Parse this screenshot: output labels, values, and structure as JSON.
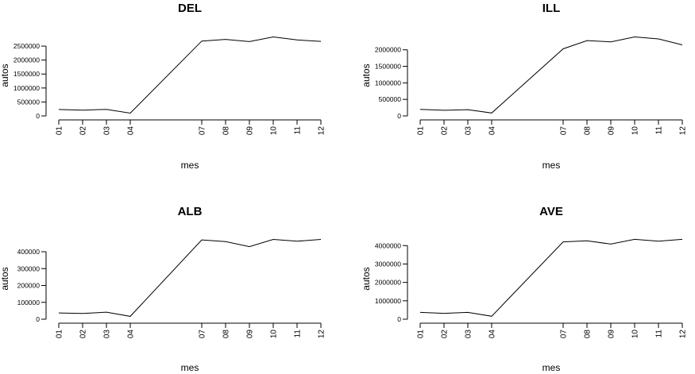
{
  "chart_data": [
    {
      "type": "line",
      "title": "DEL",
      "xlabel": "mes",
      "ylabel": "autos",
      "categories": [
        "01",
        "02",
        "03",
        "04",
        "07",
        "08",
        "09",
        "10",
        "11",
        "12"
      ],
      "x": [
        1,
        2,
        3,
        4,
        7,
        8,
        9,
        10,
        11,
        12
      ],
      "values": [
        230000,
        205000,
        235000,
        100000,
        2680000,
        2740000,
        2660000,
        2830000,
        2720000,
        2670000
      ],
      "yticks": [
        0,
        500000,
        1000000,
        1500000,
        2000000,
        2500000
      ],
      "ylim": [
        0,
        2900000
      ],
      "grid": false
    },
    {
      "type": "line",
      "title": "ILL",
      "xlabel": "mes",
      "ylabel": "autos",
      "categories": [
        "01",
        "02",
        "03",
        "04",
        "07",
        "08",
        "09",
        "10",
        "11",
        "12"
      ],
      "x": [
        1,
        2,
        3,
        4,
        7,
        8,
        9,
        10,
        11,
        12
      ],
      "values": [
        200000,
        170000,
        190000,
        90000,
        2030000,
        2280000,
        2240000,
        2390000,
        2330000,
        2150000
      ],
      "yticks": [
        0,
        500000,
        1000000,
        1500000,
        2000000
      ],
      "ylim": [
        0,
        2450000
      ],
      "grid": false
    },
    {
      "type": "line",
      "title": "ALB",
      "xlabel": "mes",
      "ylabel": "autos",
      "categories": [
        "01",
        "02",
        "03",
        "04",
        "07",
        "08",
        "09",
        "10",
        "11",
        "12"
      ],
      "x": [
        1,
        2,
        3,
        4,
        7,
        8,
        9,
        10,
        11,
        12
      ],
      "values": [
        37000,
        34000,
        42000,
        17000,
        470000,
        460000,
        430000,
        473000,
        462000,
        473000
      ],
      "yticks": [
        0,
        100000,
        200000,
        300000,
        400000
      ],
      "ylim": [
        0,
        480000
      ],
      "grid": false
    },
    {
      "type": "line",
      "title": "AVE",
      "xlabel": "mes",
      "ylabel": "autos",
      "categories": [
        "01",
        "02",
        "03",
        "04",
        "07",
        "08",
        "09",
        "10",
        "11",
        "12"
      ],
      "x": [
        1,
        2,
        3,
        4,
        7,
        8,
        9,
        10,
        11,
        12
      ],
      "values": [
        370000,
        320000,
        370000,
        160000,
        4200000,
        4260000,
        4080000,
        4340000,
        4240000,
        4340000
      ],
      "yticks": [
        0,
        1000000,
        2000000,
        3000000,
        4000000
      ],
      "ylim": [
        0,
        4400000
      ],
      "grid": false
    }
  ]
}
